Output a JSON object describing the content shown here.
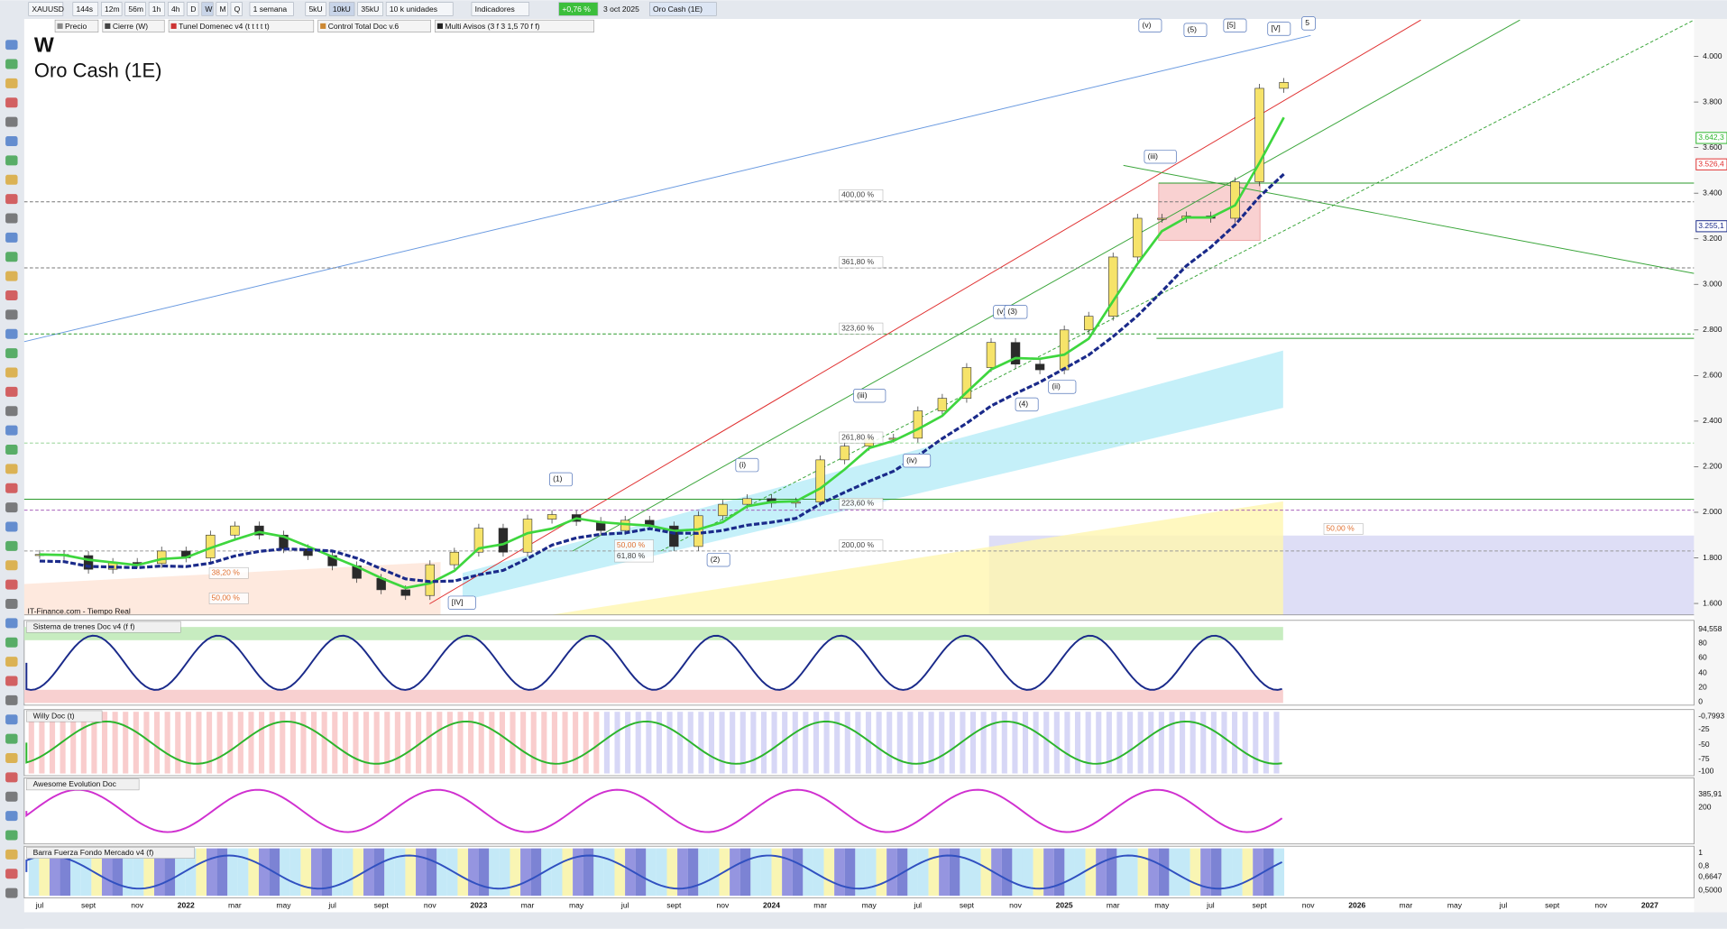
{
  "toolbar": {
    "symbol": "XAUUSD",
    "buttons": [
      "144s",
      "12m",
      "56m",
      "1h",
      "4h",
      "D",
      "W",
      "M",
      "Q"
    ],
    "period": "1 semana",
    "unit_buttons": [
      "5kU",
      "10kU",
      "35kU"
    ],
    "units": "10 k unidades",
    "indicators": "Indicadores",
    "change": "+0,76 %",
    "date": "3 oct 2025",
    "name": "Oro Cash (1E)"
  },
  "legend_row": [
    "Precio",
    "Cierre (W)",
    "Tunel Domenec v4 (t t t t t)",
    "Control Total Doc v.6",
    "Multi Avisos (3 f 3 1,5 70 f f)"
  ],
  "chart": {
    "timeframe": "W",
    "title": "Oro Cash (1E)",
    "source": "IT-Finance.com - Tiempo Real",
    "closes": [
      1815,
      1810,
      1750,
      1780,
      1775,
      1830,
      1800,
      1900,
      1940,
      1900,
      1840,
      1810,
      1765,
      1710,
      1660,
      1635,
      1770,
      1825,
      1930,
      1825,
      1970,
      1990,
      1960,
      1920,
      1965,
      1940,
      1850,
      1985,
      2035,
      2060,
      2040,
      2045,
      2230,
      2290,
      2325,
      2325,
      2445,
      2500,
      2635,
      2745,
      2650,
      2625,
      2800,
      2860,
      3120,
      3290,
      3290,
      3300,
      3290,
      3450,
      3860,
      3886
    ],
    "ylim": [
      1550,
      4150
    ],
    "yticks": [
      {
        "value": 4000,
        "label": "4.000"
      },
      {
        "value": 3800,
        "label": "3.800"
      },
      {
        "value": 3600,
        "label": "3.600"
      },
      {
        "value": 3400,
        "label": "3.400"
      },
      {
        "value": 3200,
        "label": "3.200"
      },
      {
        "value": 3000,
        "label": "3.000"
      },
      {
        "value": 2800,
        "label": "2.800"
      },
      {
        "value": 2600,
        "label": "2.600"
      },
      {
        "value": 2400,
        "label": "2.400"
      },
      {
        "value": 2200,
        "label": "2.200"
      },
      {
        "value": 2000,
        "label": "2.000"
      },
      {
        "value": 1800,
        "label": "1.800"
      },
      {
        "value": 1600,
        "label": "1.600"
      }
    ],
    "price_markers": [
      {
        "value": 3642.3,
        "label": "3.642,3",
        "color": "#2bb52b"
      },
      {
        "value": 3526.4,
        "label": "3.526,4",
        "color": "#e03030"
      },
      {
        "value": 3255.1,
        "label": "3.255,1",
        "color": "#1a2a8a"
      }
    ],
    "fib_labels": [
      "400,00 %",
      "361,80 %",
      "323,60 %",
      "261,80 %",
      "223,60 %",
      "200,00 %",
      "61,80 %",
      "50,00 %",
      "38,20 %",
      "50,00 %",
      "50,00 %"
    ],
    "wave_labels": [
      "(v)",
      "(5)",
      "[5]",
      "[V]",
      "5",
      "(iii)",
      "(v)",
      "(3)",
      "(iii)",
      "(i)",
      "(1)",
      "(2)",
      "(iv)",
      "(4)",
      "(ii)",
      "[IV]"
    ],
    "x_labels": [
      "jul",
      "sept",
      "nov",
      "2022",
      "mar",
      "may",
      "jul",
      "sept",
      "nov",
      "2023",
      "mar",
      "may",
      "jul",
      "sept",
      "nov",
      "2024",
      "mar",
      "may",
      "jul",
      "sept",
      "nov",
      "2025",
      "mar",
      "may",
      "jul",
      "sept",
      "nov",
      "2026",
      "mar",
      "may",
      "jul",
      "sept",
      "nov",
      "2027"
    ]
  },
  "panels": [
    {
      "title": "Sistema de trenes Doc v4 (f f)",
      "ticks": [
        "94,558",
        80,
        60,
        40,
        20,
        0
      ]
    },
    {
      "title": "Willy Doc (t)",
      "ticks": [
        "-0,7993",
        -25,
        -50,
        -75,
        -100
      ]
    },
    {
      "title": "Awesome Evolution Doc",
      "ticks": [
        "385,91",
        200
      ]
    },
    {
      "title": "Barra Fuerza Fondo Mercado v4 (f)",
      "ticks": [
        1,
        "0,8",
        "0,6647",
        "0,5000"
      ]
    }
  ]
}
